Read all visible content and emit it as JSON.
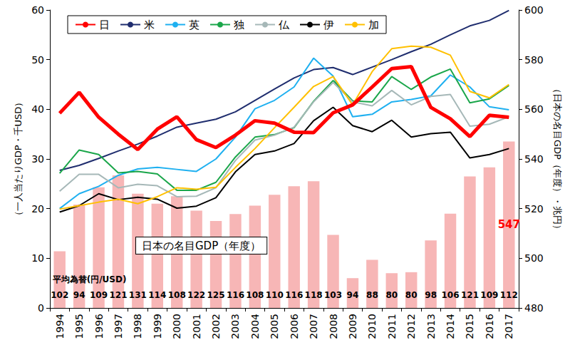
{
  "chart_data": {
    "type": "line",
    "categories": [
      "1994",
      "1995",
      "1996",
      "1997",
      "1998",
      "1999",
      "2000",
      "2001",
      "2002",
      "2003",
      "2004",
      "2005",
      "2006",
      "2007",
      "2008",
      "2009",
      "2010",
      "2011",
      "2012",
      "2013",
      "2014",
      "2015",
      "2016",
      "2017"
    ],
    "y_label": "（一人当たりGDP・千USD）",
    "y2_label": "（日本の名目GDP（年度）・兆円）",
    "ylim": [
      0,
      60
    ],
    "yticks": [
      0,
      10,
      20,
      30,
      40,
      50,
      60
    ],
    "y2lim": [
      480,
      600
    ],
    "y2ticks": [
      480,
      500,
      520,
      540,
      560,
      580,
      600
    ],
    "grid": false,
    "legend": "upper left",
    "series": [
      {
        "name": "日本の名目GDP（年度）",
        "type": "bar",
        "axis": "y2",
        "color": "#f7b6b6",
        "values": [
          502.8,
          521.6,
          528.6,
          533.4,
          526,
          522,
          525,
          519.2,
          515,
          517.8,
          521.2,
          525.6,
          529,
          531,
          509.4,
          492,
          499.4,
          494,
          494.4,
          507.2,
          518,
          533,
          536.6,
          547
        ]
      },
      {
        "name": "日",
        "type": "line",
        "color": "#ff0000",
        "marker": "none",
        "values": [
          39.2,
          43.4,
          38.4,
          35,
          31.9,
          36,
          38.5,
          33.9,
          32.3,
          34.8,
          37.7,
          37.2,
          35.4,
          35.3,
          39.3,
          40.9,
          44.5,
          48.2,
          48.6,
          40.4,
          38.1,
          34.5,
          38.8,
          38.4
        ]
      },
      {
        "name": "米",
        "type": "line",
        "color": "#1f2d6e",
        "marker": "none",
        "values": [
          27.7,
          28.7,
          30.1,
          31.6,
          33,
          34.6,
          36.4,
          37.2,
          38,
          39.5,
          41.8,
          44.1,
          46.3,
          48,
          48.4,
          47,
          48.5,
          50,
          51.6,
          53.1,
          55,
          56.8,
          57.9,
          59.9
        ]
      },
      {
        "name": "英",
        "type": "line",
        "color": "#1fb0f0",
        "marker": "none",
        "values": [
          20,
          23,
          24.5,
          26.7,
          28,
          28.3,
          27.9,
          27.5,
          30,
          34.4,
          40.1,
          41.8,
          44.5,
          50.3,
          46.7,
          38.5,
          39,
          41.5,
          42,
          42.7,
          46.9,
          44.5,
          40.5,
          39.9
        ]
      },
      {
        "name": "独",
        "type": "line",
        "color": "#1aa64a",
        "marker": "none",
        "values": [
          27.1,
          31.8,
          30.9,
          27.2,
          27.5,
          27,
          23.7,
          23.7,
          25.3,
          30.4,
          34.4,
          34.9,
          36.3,
          41.6,
          45.8,
          41.7,
          41.5,
          46.6,
          44,
          46.5,
          48.1,
          41.3,
          42.1,
          44.8
        ]
      },
      {
        "name": "仏",
        "type": "line",
        "color": "#a6b8b8",
        "marker": "none",
        "values": [
          23.5,
          26.9,
          26.9,
          24.2,
          24.9,
          24.6,
          22.4,
          22.5,
          24.2,
          29.7,
          33.8,
          34.8,
          36.4,
          41.5,
          45.4,
          41.5,
          40.7,
          43.8,
          40.9,
          42.6,
          43,
          36.6,
          37,
          38.5
        ]
      },
      {
        "name": "伊",
        "type": "line",
        "color": "#000000",
        "marker": "none",
        "values": [
          19.3,
          20.6,
          23,
          21.8,
          22.3,
          21.9,
          20.1,
          20.5,
          22.2,
          27.4,
          30.9,
          31.6,
          33.1,
          37.7,
          40.4,
          36.7,
          35.5,
          37.8,
          34.4,
          35.1,
          35.4,
          30.2,
          30.9,
          32.1
        ]
      },
      {
        "name": "加",
        "type": "line",
        "color": "#ffc000",
        "marker": "none",
        "values": [
          19.9,
          20.6,
          21.3,
          21.9,
          21,
          22.4,
          24.2,
          23.9,
          24.3,
          28.3,
          32.1,
          36.3,
          40.4,
          44.6,
          46.6,
          40.9,
          47.6,
          52.2,
          52.7,
          52.5,
          50.9,
          43.6,
          42.3,
          45
        ]
      }
    ],
    "annotations": [
      {
        "text": "547",
        "x": "2017",
        "y": 547,
        "axis": "y2",
        "color": "#ff0000"
      }
    ],
    "exchange_rate": {
      "label": "平均為替(円/USD)",
      "values": [
        102,
        94,
        109,
        121,
        131,
        114,
        108,
        122,
        125,
        116,
        108,
        110,
        116,
        118,
        103,
        94,
        88,
        80,
        80,
        98,
        106,
        121,
        109,
        112
      ]
    }
  }
}
